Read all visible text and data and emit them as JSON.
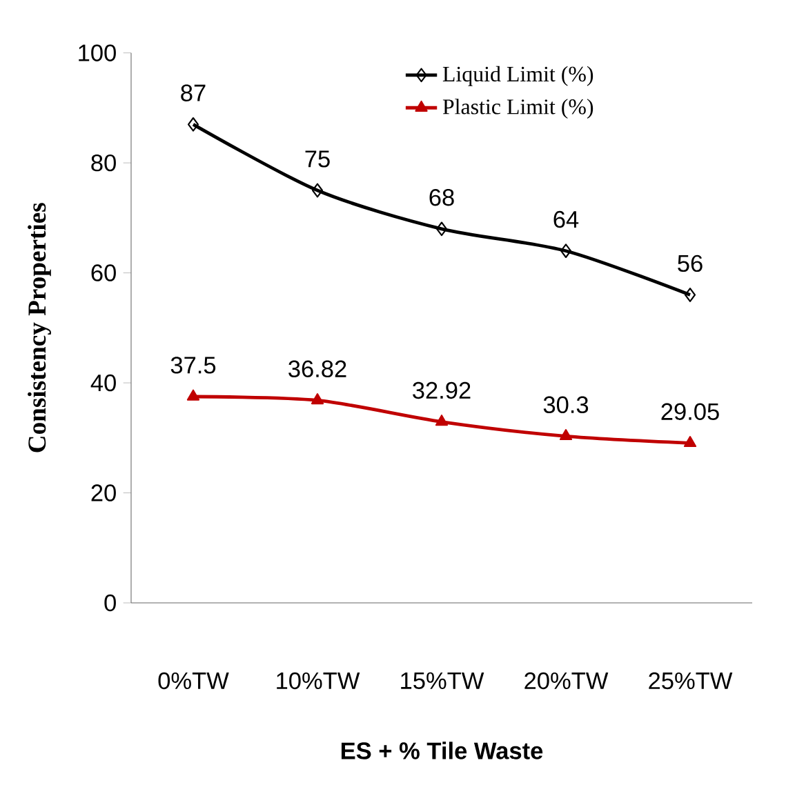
{
  "chart_data": {
    "type": "line",
    "xlabel": "ES + % Tile Waste",
    "ylabel": "Consistency Properties",
    "categories": [
      "0%TW",
      "10%TW",
      "15%TW",
      "20%TW",
      "25%TW"
    ],
    "ylim": [
      0,
      100
    ],
    "yticks": [
      0,
      20,
      40,
      60,
      80,
      100
    ],
    "legend": "top right",
    "data_labels": true,
    "series": [
      {
        "name": "Liquid Limit (%)",
        "color": "#000000",
        "marker": "diamond",
        "values": [
          87,
          75,
          68,
          64,
          56
        ]
      },
      {
        "name": "Plastic Limit (%)",
        "color": "#c00000",
        "marker": "triangle",
        "values": [
          37.5,
          36.82,
          32.92,
          30.3,
          29.05
        ]
      }
    ]
  }
}
